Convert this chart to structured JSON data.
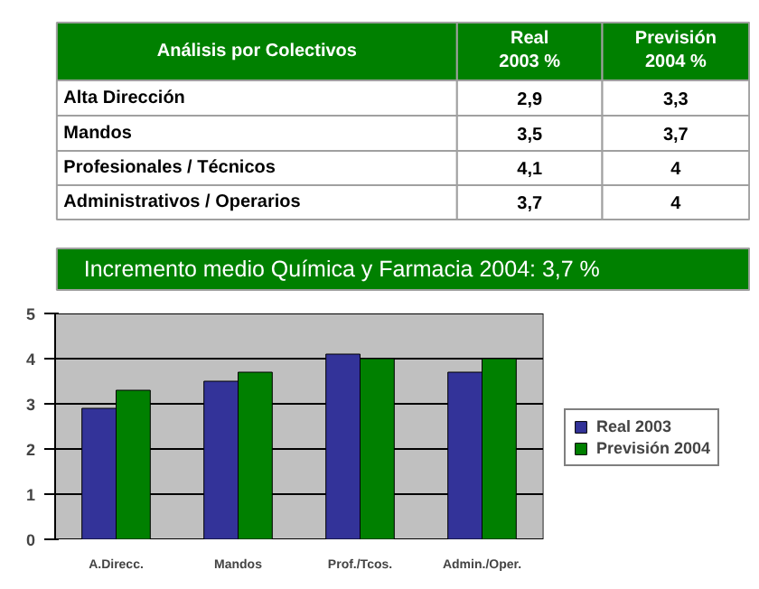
{
  "chart_data": {
    "type": "bar",
    "categories": [
      "A.Direcc.",
      "Mandos",
      "Prof./Tcos.",
      "Admin./Oper."
    ],
    "series": [
      {
        "name": "Real 2003",
        "color": "#333399",
        "values": [
          2.9,
          3.5,
          4.1,
          3.7
        ]
      },
      {
        "name": "Previsión 2004",
        "color": "#008000",
        "values": [
          3.3,
          3.7,
          4,
          4
        ]
      }
    ],
    "ylim": [
      0,
      5
    ],
    "yticks": [
      0,
      1,
      2,
      3,
      4,
      5
    ],
    "grid": "y",
    "legend": "right",
    "annotations": [
      "Análisis por Colectivos",
      "Real 2003 %",
      "Previsión 2004 %",
      "Alta Dirección",
      "Mandos",
      "Profesionales / Técnicos",
      "Administrativos / Operarios",
      "Incremento medio Química y Farmacia 2004: 3,7 %",
      "2,9",
      "3,3",
      "3,5",
      "3,7",
      "4,1",
      "4",
      "3,7",
      "4"
    ]
  }
}
